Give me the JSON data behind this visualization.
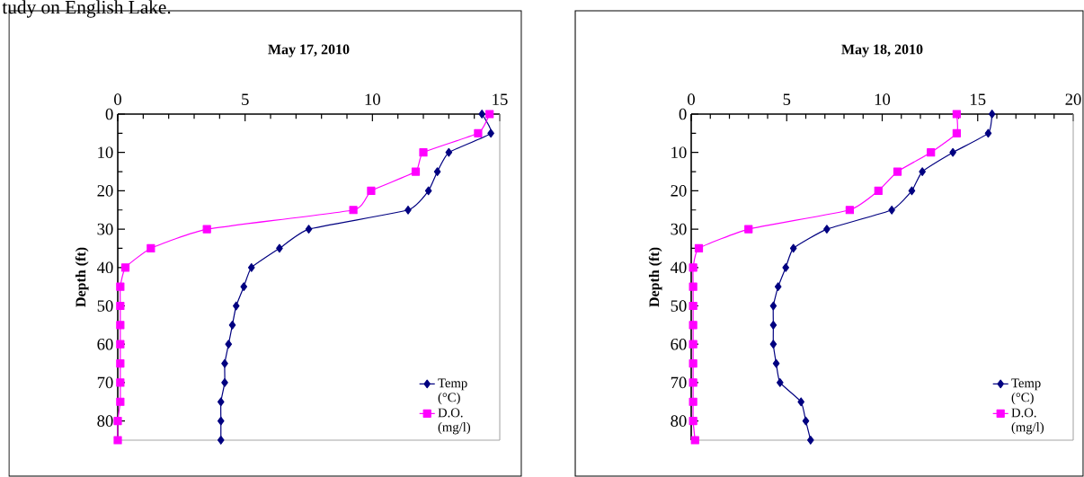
{
  "chart_data": [
    {
      "type": "line",
      "title": "May 17, 2010",
      "ylabel": "Depth (ft)",
      "orientation": "horizontal",
      "annotations": [
        "tudy on English Lake."
      ],
      "x": [
        0,
        5,
        10,
        15,
        20,
        25,
        30,
        35,
        40,
        45,
        50,
        55,
        60,
        65,
        70,
        75,
        80,
        85
      ],
      "xlim": [
        0,
        15
      ],
      "xticks": [
        0,
        5,
        10,
        15
      ],
      "ylim": [
        85,
        0
      ],
      "yticks": [
        0,
        10,
        20,
        30,
        40,
        50,
        60,
        70,
        80
      ],
      "legend": "bottom right",
      "series": [
        {
          "name": "Temp (°C)",
          "color": "#000080",
          "marker": "diamond",
          "values": [
            14.3,
            14.65,
            13.0,
            12.55,
            12.2,
            11.4,
            7.5,
            6.35,
            5.25,
            4.95,
            4.65,
            4.5,
            4.35,
            4.2,
            4.2,
            4.05,
            4.05,
            4.05
          ]
        },
        {
          "name": "D.O. (mg/l)",
          "color": "#ff00ff",
          "marker": "square",
          "values": [
            14.6,
            14.15,
            12.0,
            11.7,
            9.95,
            9.25,
            3.5,
            1.3,
            0.3,
            0.1,
            0.1,
            0.1,
            0.1,
            0.1,
            0.1,
            0.1,
            0.0,
            0.0
          ]
        }
      ]
    },
    {
      "type": "line",
      "title": "May 18, 2010",
      "ylabel": "Depth (ft)",
      "orientation": "horizontal",
      "x": [
        0,
        5,
        10,
        15,
        20,
        25,
        30,
        35,
        40,
        45,
        50,
        55,
        60,
        65,
        70,
        75,
        80,
        85
      ],
      "xlim": [
        0,
        20
      ],
      "xticks": [
        0,
        5,
        10,
        15,
        20
      ],
      "ylim": [
        85,
        0
      ],
      "yticks": [
        0,
        10,
        20,
        30,
        40,
        50,
        60,
        70,
        80
      ],
      "legend": "bottom right",
      "series": [
        {
          "name": "Temp (°C)",
          "color": "#000080",
          "marker": "diamond",
          "values": [
            15.75,
            15.55,
            13.7,
            12.1,
            11.55,
            10.5,
            7.1,
            5.35,
            4.95,
            4.55,
            4.3,
            4.3,
            4.3,
            4.45,
            4.65,
            5.75,
            6.0,
            6.25
          ]
        },
        {
          "name": "D.O. (mg/l)",
          "color": "#ff00ff",
          "marker": "square",
          "values": [
            13.9,
            13.9,
            12.55,
            10.8,
            9.8,
            8.3,
            3.0,
            0.4,
            0.1,
            0.1,
            0.1,
            0.1,
            0.1,
            0.1,
            0.1,
            0.1,
            0.1,
            0.2
          ]
        }
      ]
    }
  ]
}
